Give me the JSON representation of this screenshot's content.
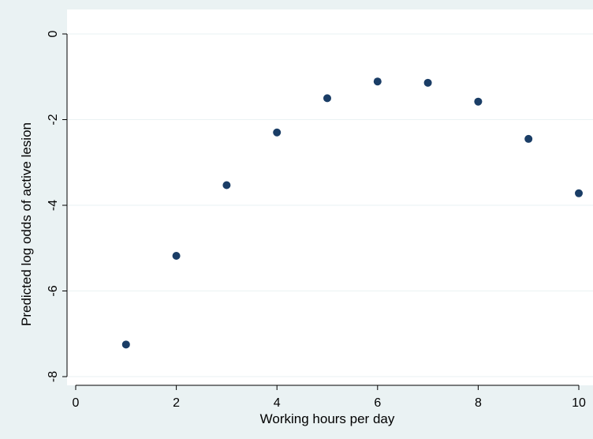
{
  "chart_data": {
    "type": "scatter",
    "title": "",
    "xlabel": "Working hours per day",
    "ylabel": "Predicted log odds of active lesion",
    "xlim": [
      0,
      10
    ],
    "ylim": [
      -8,
      0
    ],
    "xticks": [
      0,
      2,
      4,
      6,
      8,
      10
    ],
    "yticks": [
      0,
      -2,
      -4,
      -6,
      -8
    ],
    "grid": "horizontal",
    "legend": "none",
    "colors": {
      "background": "#eaf2f3",
      "plot_area": "#ffffff",
      "marker": "#1a3d66",
      "grid": "#eaf2f3"
    },
    "points": [
      {
        "x": 1,
        "y": -7.25
      },
      {
        "x": 2,
        "y": -5.18
      },
      {
        "x": 3,
        "y": -3.53
      },
      {
        "x": 4,
        "y": -2.3
      },
      {
        "x": 5,
        "y": -1.5
      },
      {
        "x": 6,
        "y": -1.11
      },
      {
        "x": 7,
        "y": -1.14
      },
      {
        "x": 8,
        "y": -1.58
      },
      {
        "x": 9,
        "y": -2.45
      },
      {
        "x": 10,
        "y": -3.72
      }
    ]
  }
}
